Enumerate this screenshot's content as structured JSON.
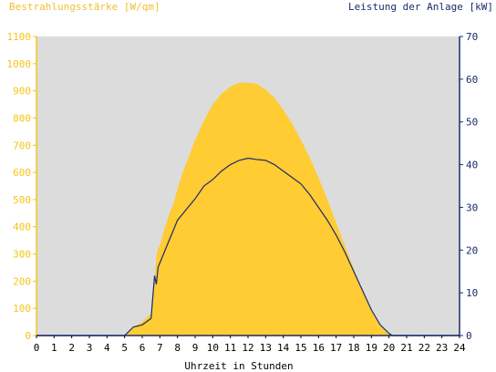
{
  "chart_data": {
    "type": "area",
    "title_left": "Bestrahlungsstärke [W/qm]",
    "title_right": "Leistung der Anlage [kW]",
    "xlabel": "Uhrzeit in Stunden",
    "xlim": [
      0,
      24
    ],
    "x_ticks": [
      "0",
      "1",
      "2",
      "3",
      "4",
      "5",
      "6",
      "7",
      "8",
      "9",
      "10",
      "11",
      "12",
      "13",
      "14",
      "15",
      "16",
      "17",
      "18",
      "19",
      "20",
      "21",
      "22",
      "23",
      "24"
    ],
    "y_left": {
      "lim": [
        0,
        1100
      ],
      "ticks": [
        "0",
        "100",
        "200",
        "300",
        "400",
        "500",
        "600",
        "700",
        "800",
        "900",
        "1000",
        "1100"
      ]
    },
    "y_right": {
      "lim": [
        0,
        70
      ],
      "ticks": [
        "0",
        "10",
        "20",
        "30",
        "40",
        "50",
        "60",
        "70"
      ]
    },
    "grid": false,
    "colors": {
      "irradiance": "#ffcc33",
      "power": "#1a2a6c",
      "plot_bg": "#dcdcdc",
      "left_axis": "#f5c518",
      "right_axis": "#1a2a6c"
    },
    "series": [
      {
        "axis": "left",
        "style": "area",
        "x": [
          0,
          5,
          5.5,
          6,
          6.5,
          6.7,
          6.8,
          6.9,
          7,
          7.2,
          7.5,
          7.8,
          8,
          8.3,
          8.6,
          9,
          9.5,
          10,
          10.5,
          11,
          11.5,
          12,
          12.5,
          13,
          13.5,
          14,
          14.5,
          15,
          15.5,
          16,
          16.5,
          17,
          17.5,
          18,
          18.5,
          19,
          19.5,
          20,
          20.2,
          24
        ],
        "y": [
          0,
          0,
          30,
          50,
          80,
          200,
          290,
          320,
          330,
          380,
          440,
          490,
          540,
          600,
          650,
          720,
          790,
          850,
          890,
          915,
          930,
          930,
          925,
          905,
          875,
          830,
          780,
          720,
          655,
          580,
          500,
          415,
          330,
          245,
          165,
          90,
          35,
          5,
          0,
          0
        ]
      },
      {
        "axis": "right",
        "style": "line",
        "x": [
          0,
          5,
          5.5,
          6,
          6.5,
          6.7,
          6.8,
          6.9,
          7,
          7.2,
          7.5,
          7.8,
          8,
          8.3,
          8.6,
          9,
          9.5,
          10,
          10.5,
          11,
          11.5,
          12,
          12.5,
          13,
          13.5,
          14,
          14.5,
          15,
          15.5,
          16,
          16.5,
          17,
          17.5,
          18,
          18.5,
          19,
          19.5,
          20,
          20.2,
          24
        ],
        "y": [
          0,
          0,
          2,
          2.5,
          4,
          14,
          12,
          16,
          17,
          19,
          22,
          25,
          27,
          28.5,
          30,
          32,
          35,
          36.5,
          38.5,
          40,
          41,
          41.5,
          41.2,
          41,
          40,
          38.5,
          37,
          35.5,
          33,
          30,
          27,
          23.5,
          19.5,
          15,
          10.5,
          6,
          2.5,
          0.5,
          0,
          0
        ]
      }
    ]
  }
}
